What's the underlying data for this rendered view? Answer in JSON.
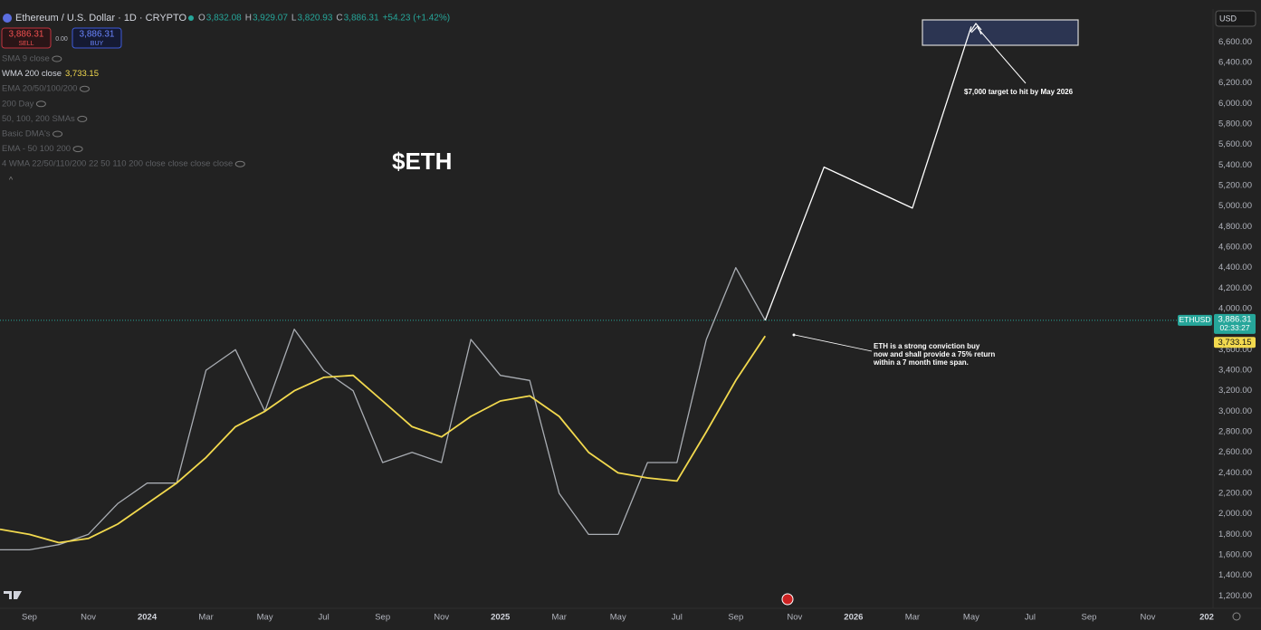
{
  "chart_data": {
    "type": "line",
    "title": "$ETH",
    "x": [
      "2023-08",
      "2023-09",
      "2023-10",
      "2023-11",
      "2023-12",
      "2024-01",
      "2024-02",
      "2024-03",
      "2024-04",
      "2024-05",
      "2024-06",
      "2024-07",
      "2024-08",
      "2024-09",
      "2024-10",
      "2024-11",
      "2024-12",
      "2025-01",
      "2025-02",
      "2025-03",
      "2025-04",
      "2025-05",
      "2025-06",
      "2025-07",
      "2025-08",
      "2025-09",
      "2025-10"
    ],
    "series": [
      {
        "name": "ETHUSD",
        "color": "#a9adb3",
        "values": [
          1650,
          1650,
          1700,
          1800,
          2100,
          2300,
          2300,
          3400,
          3600,
          3000,
          3800,
          3400,
          3200,
          2500,
          2600,
          2500,
          3700,
          3350,
          3300,
          2200,
          1800,
          1800,
          2500,
          2500,
          3700,
          4400,
          3886.31
        ]
      },
      {
        "name": "WMA 200 close",
        "color": "#f2d94e",
        "values": [
          1850,
          1800,
          1720,
          1760,
          1900,
          2100,
          2300,
          2550,
          2850,
          3000,
          3200,
          3330,
          3350,
          3100,
          2850,
          2750,
          2950,
          3100,
          3150,
          2950,
          2600,
          2400,
          2350,
          2320,
          2800,
          3300,
          3733.15
        ]
      },
      {
        "color": "#ffffff",
        "x": [
          "2025-10",
          "2025-12",
          "2026-03",
          "2026-05"
        ],
        "values": [
          3886.31,
          5380,
          4980,
          6750
        ]
      }
    ],
    "xlim": [
      "2023-08",
      "2027-01"
    ],
    "xticks": [
      {
        "value": "2023-09",
        "label": "Sep"
      },
      {
        "value": "2023-11",
        "label": "Nov"
      },
      {
        "value": "2024-01",
        "label": "2024"
      },
      {
        "value": "2024-03",
        "label": "Mar"
      },
      {
        "value": "2024-05",
        "label": "May"
      },
      {
        "value": "2024-07",
        "label": "Jul"
      },
      {
        "value": "2024-09",
        "label": "Sep"
      },
      {
        "value": "2024-11",
        "label": "Nov"
      },
      {
        "value": "2025-01",
        "label": "2025"
      },
      {
        "value": "2025-03",
        "label": "Mar"
      },
      {
        "value": "2025-05",
        "label": "May"
      },
      {
        "value": "2025-07",
        "label": "Jul"
      },
      {
        "value": "2025-09",
        "label": "Sep"
      },
      {
        "value": "2025-11",
        "label": "Nov"
      },
      {
        "value": "2026-01",
        "label": "2026"
      },
      {
        "value": "2026-03",
        "label": "Mar"
      },
      {
        "value": "2026-05",
        "label": "May"
      },
      {
        "value": "2026-07",
        "label": "Jul"
      },
      {
        "value": "2026-09",
        "label": "Sep"
      },
      {
        "value": "2026-11",
        "label": "Nov"
      },
      {
        "value": "2027-01",
        "label": "202"
      }
    ],
    "ylim": [
      1080,
      6920
    ],
    "yticks": [
      {
        "value": 1200,
        "label": "1,200.00"
      },
      {
        "value": 1400,
        "label": "1,400.00"
      },
      {
        "value": 1600,
        "label": "1,600.00"
      },
      {
        "value": 1800,
        "label": "1,800.00"
      },
      {
        "value": 2000,
        "label": "2,000.00"
      },
      {
        "value": 2200,
        "label": "2,200.00"
      },
      {
        "value": 2400,
        "label": "2,400.00"
      },
      {
        "value": 2600,
        "label": "2,600.00"
      },
      {
        "value": 2800,
        "label": "2,800.00"
      },
      {
        "value": 3000,
        "label": "3,000.00"
      },
      {
        "value": 3200,
        "label": "3,200.00"
      },
      {
        "value": 3400,
        "label": "3,400.00"
      },
      {
        "value": 3600,
        "label": "3,600.00"
      },
      {
        "value": 3800,
        "label": "3,800.00"
      },
      {
        "value": 4000,
        "label": "4,000.00"
      },
      {
        "value": 4200,
        "label": "4,200.00"
      },
      {
        "value": 4400,
        "label": "4,400.00"
      },
      {
        "value": 4600,
        "label": "4,600.00"
      },
      {
        "value": 4800,
        "label": "4,800.00"
      },
      {
        "value": 5000,
        "label": "5,000.00"
      },
      {
        "value": 5200,
        "label": "5,200.00"
      },
      {
        "value": 5400,
        "label": "5,400.00"
      },
      {
        "value": 5600,
        "label": "5,600.00"
      },
      {
        "value": 5800,
        "label": "5,800.00"
      },
      {
        "value": 6000,
        "label": "6,000.00"
      },
      {
        "value": 6200,
        "label": "6,200.00"
      },
      {
        "value": 6400,
        "label": "6,400.00"
      },
      {
        "value": 6600,
        "label": "6,600.00"
      }
    ],
    "grid": false,
    "last_price_label": "3,886.31",
    "countdown": "02:33:27",
    "wma_label": "3,733.15"
  },
  "ui": {
    "symbol": "Ethereum / U.S. Dollar · 1D · CRYPTO",
    "ohlc": [
      {
        "key": "O",
        "value": "3,832.08"
      },
      {
        "key": "H",
        "value": "3,929.07"
      },
      {
        "key": "L",
        "value": "3,820.93"
      },
      {
        "key": "C",
        "value": "3,886.31"
      }
    ],
    "change": "+54.23 (+1.42%)",
    "sell": {
      "price": "3,886.31",
      "label": "SELL"
    },
    "spread": "0.00",
    "buy": {
      "price": "3,886.31",
      "label": "BUY"
    },
    "indicators": [
      "SMA 9 close",
      "WMA 200 close",
      "EMA 20/50/100/200",
      "200 Day",
      "50, 100, 200 SMAs",
      "Basic DMA's",
      "EMA - 50 100 200",
      "4 WMA 22/50/110/200 22 50 110 200 close close close close"
    ],
    "currency": "USD",
    "annotations": {
      "target": "$7,000 target to hit by May 2026",
      "thesis": [
        "ETH is a strong conviction buy",
        "now and shall provide a 75% return",
        "within a 7 month time span."
      ]
    }
  }
}
